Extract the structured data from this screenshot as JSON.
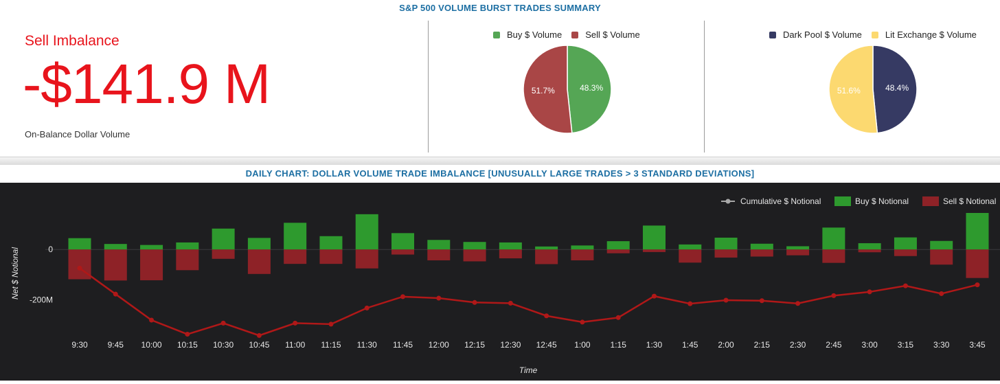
{
  "header": {
    "title": "S&P 500 VOLUME BURST TRADES SUMMARY"
  },
  "imbalance": {
    "label": "Sell Imbalance",
    "value": "-$141.9 M",
    "sublabel": "On-Balance Dollar Volume",
    "color": "#e8141c"
  },
  "pie_buy_sell": {
    "legend": [
      {
        "name": "Buy $ Volume",
        "color": "#55a655"
      },
      {
        "name": "Sell $ Volume",
        "color": "#a94646"
      }
    ],
    "slices": [
      {
        "name": "Buy $ Volume",
        "value": 48.3,
        "label": "48.3%"
      },
      {
        "name": "Sell $ Volume",
        "value": 51.7,
        "label": "51.7%"
      }
    ]
  },
  "pie_dark_lit": {
    "legend": [
      {
        "name": "Dark Pool $ Volume",
        "color": "#363a63"
      },
      {
        "name": "Lit Exchange $ Volume",
        "color": "#fcd970"
      }
    ],
    "slices": [
      {
        "name": "Dark Pool $ Volume",
        "value": 48.4,
        "label": "48.4%"
      },
      {
        "name": "Lit Exchange $ Volume",
        "value": 51.6,
        "label": "51.6%"
      }
    ]
  },
  "daily": {
    "title": "DAILY CHART: DOLLAR VOLUME TRADE IMBALANCE [UNUSUALLY LARGE TRADES > 3 STANDARD DEVIATIONS]"
  },
  "chart_data": {
    "type": "bar",
    "xlabel": "Time",
    "ylabel": "Net $ Notional",
    "yticks": [
      0,
      -200
    ],
    "ytick_labels": [
      "0",
      "-200M"
    ],
    "ylim": [
      -340,
      145
    ],
    "legend_position": "top-right",
    "grid": false,
    "categories": [
      "9:30",
      "9:45",
      "10:00",
      "10:15",
      "10:30",
      "10:45",
      "11:00",
      "11:15",
      "11:30",
      "11:45",
      "12:00",
      "12:15",
      "12:30",
      "12:45",
      "1:00",
      "1:15",
      "1:30",
      "1:45",
      "2:00",
      "2:15",
      "2:30",
      "2:45",
      "3:00",
      "3:15",
      "3:30",
      "3:45"
    ],
    "series": [
      {
        "name": "Cumulative $ Notional",
        "kind": "line",
        "color": "#b01818",
        "values": [
          -74,
          -177,
          -280,
          -336,
          -292,
          -341,
          -292,
          -296,
          -232,
          -187,
          -193,
          -210,
          -213,
          -263,
          -288,
          -270,
          -185,
          -215,
          -201,
          -203,
          -214,
          -183,
          -168,
          -144,
          -175,
          -140
        ]
      },
      {
        "name": "Buy $ Notional",
        "kind": "bar",
        "color": "#2e9a2e",
        "values": [
          45,
          22,
          18,
          28,
          83,
          46,
          106,
          53,
          140,
          65,
          38,
          30,
          28,
          12,
          16,
          33,
          95,
          20,
          47,
          23,
          13,
          87,
          25,
          48,
          34,
          145
        ]
      },
      {
        "name": "Sell $ Notional",
        "kind": "bar",
        "color": "#8e2227",
        "values": [
          -118,
          -123,
          -122,
          -82,
          -37,
          -97,
          -57,
          -57,
          -75,
          -20,
          -43,
          -47,
          -35,
          -58,
          -43,
          -15,
          -10,
          -52,
          -32,
          -28,
          -23,
          -53,
          -11,
          -26,
          -60,
          -113
        ]
      }
    ]
  }
}
